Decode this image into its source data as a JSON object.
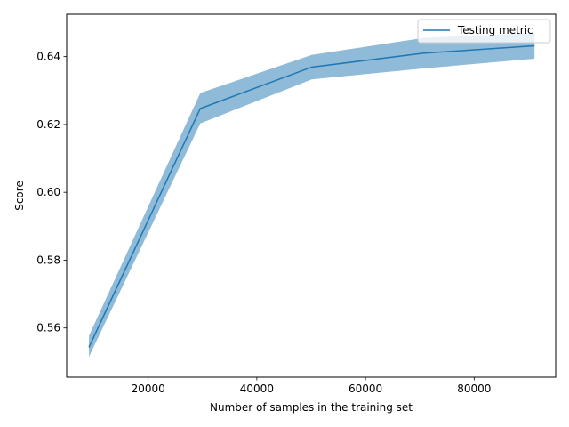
{
  "chart_data": {
    "type": "line",
    "title": "",
    "xlabel": "Number of samples in the training set",
    "ylabel": "Score",
    "xlim": [
      5000,
      95000
    ],
    "ylim": [
      0.5455,
      0.6525
    ],
    "x_ticks": [
      20000,
      40000,
      60000,
      80000
    ],
    "x_tick_labels": [
      "20000",
      "40000",
      "60000",
      "80000"
    ],
    "y_ticks": [
      0.56,
      0.58,
      0.6,
      0.62,
      0.64
    ],
    "y_tick_labels": [
      "0.56",
      "0.58",
      "0.60",
      "0.62",
      "0.64"
    ],
    "grid": false,
    "legend_position": "top-right",
    "series": [
      {
        "name": "Testing metric",
        "color": "#1f77b4",
        "band_color": "#1f77b4",
        "x": [
          9100,
          29600,
          50100,
          70600,
          91100
        ],
        "y": [
          0.5543,
          0.6247,
          0.6369,
          0.641,
          0.6432
        ],
        "lower": [
          0.5515,
          0.6203,
          0.6333,
          0.6365,
          0.6394
        ],
        "upper": [
          0.5577,
          0.6293,
          0.6405,
          0.6455,
          0.647
        ]
      }
    ]
  }
}
